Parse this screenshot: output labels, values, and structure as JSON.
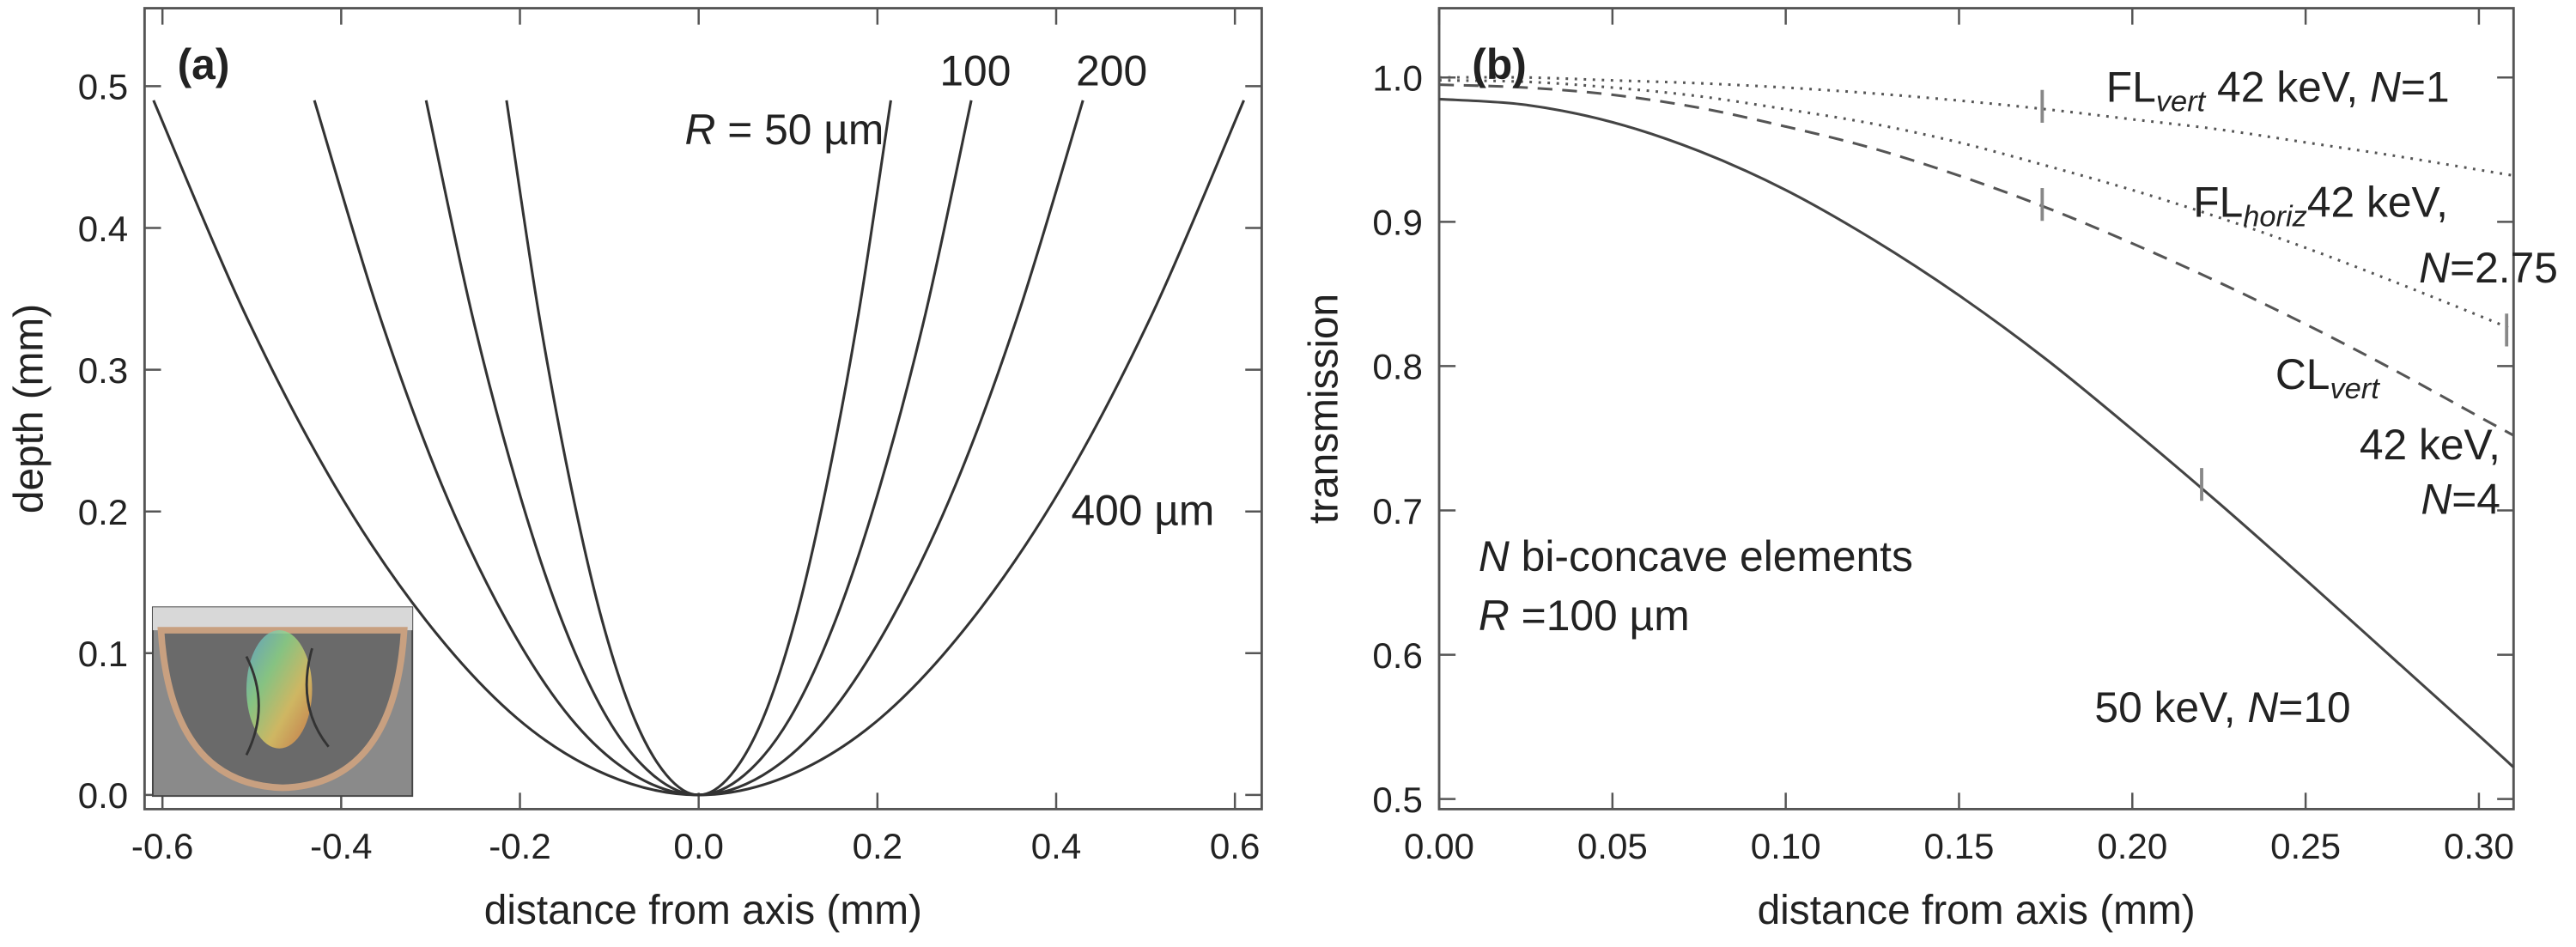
{
  "chart_data": [
    {
      "type": "line",
      "panel_label": "(a)",
      "xlabel": "distance from axis (mm)",
      "ylabel": "depth (mm)",
      "xlim": [
        -0.62,
        0.63
      ],
      "ylim": [
        -0.01,
        0.555
      ],
      "xticks": [
        -0.6,
        -0.4,
        -0.2,
        {
          "value": 0,
          "label": "0.0"
        },
        0.2,
        0.4,
        0.6
      ],
      "yticks": [
        {
          "value": 0,
          "label": "0.0"
        },
        0.1,
        0.2,
        0.3,
        0.4,
        0.5
      ],
      "series": [
        {
          "color": "#333333",
          "dash": "solid",
          "x": [
            -0.215,
            -0.179,
            -0.143,
            -0.108,
            -0.072,
            -0.036,
            0,
            0.036,
            0.072,
            0.108,
            0.143,
            0.179,
            0.215
          ],
          "values": [
            0.49,
            0.34,
            0.218,
            0.123,
            0.054,
            0.014,
            0,
            0.014,
            0.054,
            0.123,
            0.218,
            0.34,
            0.49
          ]
        },
        {
          "color": "#333333",
          "dash": "solid",
          "x": [
            -0.305,
            -0.254,
            -0.203,
            -0.153,
            -0.102,
            -0.051,
            0,
            0.051,
            0.102,
            0.153,
            0.203,
            0.254,
            0.305
          ],
          "values": [
            0.49,
            0.34,
            0.218,
            0.123,
            0.054,
            0.014,
            0,
            0.014,
            0.054,
            0.123,
            0.218,
            0.34,
            0.49
          ]
        },
        {
          "color": "#333333",
          "dash": "solid",
          "x": [
            -0.43,
            -0.358,
            -0.287,
            -0.215,
            -0.143,
            -0.072,
            0,
            0.072,
            0.143,
            0.215,
            0.287,
            0.358,
            0.43
          ],
          "values": [
            0.49,
            0.34,
            0.218,
            0.123,
            0.054,
            0.014,
            0,
            0.014,
            0.054,
            0.123,
            0.218,
            0.34,
            0.49
          ]
        },
        {
          "color": "#333333",
          "dash": "solid",
          "x": [
            -0.61,
            -0.508,
            -0.407,
            -0.305,
            -0.203,
            -0.102,
            0,
            0.102,
            0.203,
            0.305,
            0.407,
            0.508,
            0.61
          ],
          "values": [
            0.49,
            0.34,
            0.218,
            0.123,
            0.054,
            0.014,
            0,
            0.014,
            0.054,
            0.123,
            0.218,
            0.34,
            0.49
          ]
        }
      ],
      "annotations": [
        {
          "lines": [
            [
              {
                "text": "R",
                "style": "italic"
              },
              {
                "text": " = 50 µm"
              }
            ]
          ]
        },
        {
          "lines": [
            [
              {
                "text": "100"
              }
            ]
          ]
        },
        {
          "lines": [
            [
              {
                "text": "200"
              }
            ]
          ]
        },
        {
          "lines": [
            [
              {
                "text": "400 µm"
              }
            ]
          ]
        }
      ]
    },
    {
      "type": "line",
      "panel_label": "(b)",
      "xlabel": "distance from axis (mm)",
      "ylabel": "transmission",
      "xlim": [
        0,
        0.31
      ],
      "ylim": [
        0.493,
        1.048
      ],
      "xticks": [
        {
          "value": 0,
          "label": "0.00"
        },
        0.05,
        {
          "value": 0.1,
          "label": "0.10"
        },
        0.15,
        {
          "value": 0.2,
          "label": "0.20"
        },
        0.25,
        {
          "value": 0.3,
          "label": "0.30"
        }
      ],
      "yticks": [
        0.5,
        0.6,
        0.7,
        0.8,
        0.9,
        {
          "value": 1,
          "label": "1.0"
        }
      ],
      "x": [
        0,
        0.025,
        0.05,
        0.075,
        0.1,
        0.125,
        0.15,
        0.175,
        0.2,
        0.225,
        0.25,
        0.275,
        0.3,
        0.31
      ],
      "series": [
        {
          "color": "#555555",
          "dash": "dotted",
          "values": [
            1,
            1,
            0.998,
            0.996,
            0.993,
            0.989,
            0.984,
            0.978,
            0.971,
            0.964,
            0.955,
            0.946,
            0.936,
            0.932
          ],
          "marker": [
            0.174,
            0.98
          ]
        },
        {
          "color": "#555555",
          "dash": "dotted",
          "values": [
            0.998,
            0.997,
            0.993,
            0.987,
            0.978,
            0.968,
            0.955,
            0.939,
            0.922,
            0.903,
            0.882,
            0.859,
            0.835,
            0.825
          ],
          "marker": [
            0.308,
            0.825
          ]
        },
        {
          "color": "#555555",
          "dash": "dashed",
          "values": [
            0.995,
            0.993,
            0.988,
            0.979,
            0.966,
            0.951,
            0.932,
            0.91,
            0.885,
            0.858,
            0.829,
            0.798,
            0.765,
            0.752
          ],
          "marker": [
            0.174,
            0.912
          ]
        },
        {
          "color": "#444444",
          "dash": "solid",
          "values": [
            0.985,
            0.981,
            0.969,
            0.949,
            0.922,
            0.888,
            0.849,
            0.805,
            0.756,
            0.705,
            0.652,
            0.598,
            0.544,
            0.522
          ],
          "marker": [
            0.22,
            0.718
          ]
        }
      ],
      "annotations": [
        {
          "lines": [
            [
              {
                "text": "FL"
              },
              {
                "text": "vert",
                "style": "sub"
              },
              {
                "text": " 42 keV, "
              },
              {
                "text": "N",
                "style": "italic"
              },
              {
                "text": "=1"
              }
            ]
          ]
        },
        {
          "lines": [
            [
              {
                "text": "FL"
              },
              {
                "text": "horiz",
                "style": "sub"
              },
              {
                "text": "42 keV,"
              }
            ],
            [
              {
                "text": "N",
                "style": "italic"
              },
              {
                "text": "=2.75"
              }
            ]
          ]
        },
        {
          "lines": [
            [
              {
                "text": "CL"
              },
              {
                "text": "vert",
                "style": "sub"
              }
            ],
            [
              {
                "text": "42 keV,"
              }
            ],
            [
              {
                "text": "N",
                "style": "italic"
              },
              {
                "text": "=4"
              }
            ]
          ]
        },
        {
          "lines": [
            [
              {
                "text": "N",
                "style": "italic"
              },
              {
                "text": " bi-concave elements"
              }
            ],
            [
              {
                "text": "R",
                "style": "italic"
              },
              {
                "text": " =100 µm"
              }
            ]
          ]
        },
        {
          "lines": [
            [
              {
                "text": "50 keV, "
              },
              {
                "text": "N",
                "style": "italic"
              },
              {
                "text": "=10"
              }
            ]
          ]
        }
      ]
    }
  ]
}
